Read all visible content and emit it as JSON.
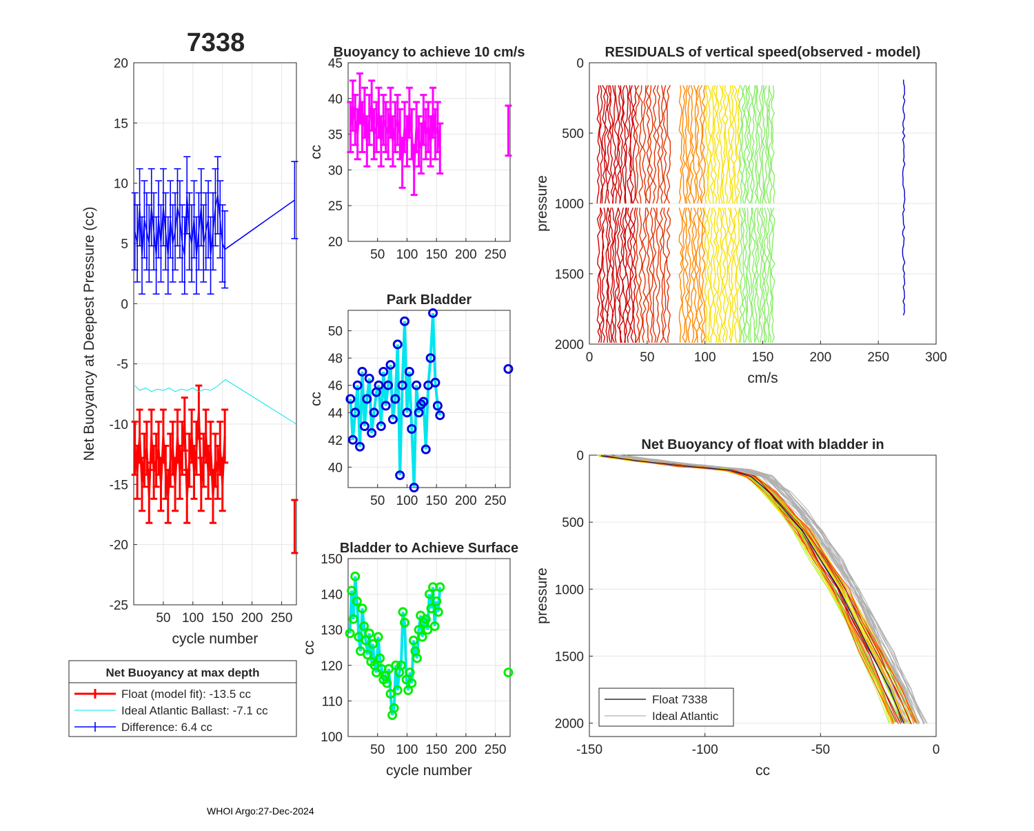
{
  "figure_title": "7338",
  "footer": "WHOI Argo:27-Dec-2024",
  "colors": {
    "float": "#ff0000",
    "ideal": "#00e5ee",
    "difference": "#0000ff",
    "magenta": "#ff00ff",
    "park": "#0000dd",
    "surface": "#00ee00",
    "grey": "#b0b0b0"
  },
  "chart_data": [
    {
      "id": "net-buoyancy",
      "type": "line",
      "title": "",
      "xlabel": "cycle number",
      "ylabel": "Net Buoyancy at Deepest Pressure (cc)",
      "xlim": [
        0,
        275
      ],
      "ylim": [
        -25,
        20
      ],
      "xticks": [
        50,
        100,
        150,
        200,
        250
      ],
      "yticks": [
        -25,
        -20,
        -15,
        -10,
        -5,
        0,
        5,
        10,
        15,
        20
      ],
      "series": [
        {
          "name": "Float (model fit)",
          "x": [
            2,
            6,
            10,
            14,
            18,
            22,
            26,
            30,
            34,
            38,
            42,
            46,
            50,
            54,
            58,
            62,
            66,
            70,
            74,
            78,
            82,
            86,
            90,
            94,
            98,
            102,
            106,
            110,
            114,
            118,
            122,
            126,
            130,
            134,
            138,
            142,
            146,
            150,
            154,
            272
          ],
          "y": [
            -12,
            -14,
            -11,
            -15,
            -13,
            -12,
            -16,
            -11,
            -14,
            -13,
            -12,
            -15,
            -11,
            -14,
            -16,
            -13,
            -12,
            -15,
            -11,
            -14,
            -12,
            -10,
            -16,
            -13,
            -11,
            -14,
            -12,
            -9,
            -15,
            -13,
            -11,
            -14,
            -12,
            -16,
            -13,
            -14,
            -12,
            -15,
            -11,
            -18.5
          ],
          "err": 2.2
        },
        {
          "name": "Ideal Atlantic Ballast",
          "x": [
            2,
            10,
            20,
            30,
            40,
            50,
            60,
            70,
            80,
            90,
            100,
            110,
            120,
            130,
            140,
            150,
            155,
            275
          ],
          "y": [
            -6.8,
            -7.2,
            -7.0,
            -7.3,
            -7.1,
            -7.2,
            -7.0,
            -7.3,
            -7.1,
            -7.2,
            -7.0,
            -7.3,
            -7.1,
            -7.2,
            -6.9,
            -6.5,
            -6.3,
            -10
          ]
        },
        {
          "name": "Difference",
          "x": [
            2,
            6,
            10,
            14,
            18,
            22,
            26,
            30,
            34,
            38,
            42,
            46,
            50,
            54,
            58,
            62,
            66,
            70,
            74,
            78,
            82,
            86,
            90,
            94,
            98,
            102,
            106,
            110,
            114,
            118,
            122,
            126,
            130,
            134,
            138,
            142,
            146,
            150,
            154,
            272
          ],
          "y": [
            6,
            5,
            8,
            4,
            7,
            6,
            5,
            8,
            6,
            4,
            7,
            5,
            8,
            6,
            4,
            7,
            5,
            6,
            8,
            7,
            5,
            4,
            9,
            6,
            5,
            7,
            4,
            6,
            8,
            5,
            6,
            7,
            4,
            6,
            8,
            9,
            7,
            5,
            4.5,
            8.6
          ],
          "err": 3.2
        }
      ],
      "legend": {
        "title": "Net Buoyancy at max depth",
        "entries": [
          "Float (model fit): -13.5 cc",
          "Ideal Atlantic Ballast:  -7.1 cc",
          "Difference:   6.4 cc"
        ]
      }
    },
    {
      "id": "buoyancy-10cms",
      "type": "line",
      "title": "Buoyancy to achieve 10 cm/s",
      "xlabel": "",
      "ylabel": "cc",
      "xlim": [
        0,
        275
      ],
      "ylim": [
        20,
        45
      ],
      "xticks": [
        50,
        100,
        150,
        200,
        250
      ],
      "yticks": [
        20,
        25,
        30,
        35,
        40,
        45
      ],
      "x": [
        4,
        8,
        12,
        16,
        20,
        24,
        28,
        32,
        36,
        40,
        44,
        48,
        52,
        56,
        60,
        64,
        68,
        72,
        76,
        80,
        84,
        88,
        92,
        96,
        100,
        104,
        108,
        112,
        116,
        120,
        124,
        128,
        132,
        136,
        140,
        144,
        148,
        152,
        156,
        272
      ],
      "y": [
        36,
        39,
        37,
        35,
        40,
        36,
        38,
        34,
        37,
        39,
        35,
        36,
        38,
        34,
        37,
        36,
        35,
        38,
        34,
        36,
        37,
        35,
        31,
        36,
        34,
        38,
        35,
        30,
        36,
        34,
        33,
        37,
        35,
        36,
        34,
        38,
        35,
        36,
        33,
        35.5
      ],
      "err": 3.5
    },
    {
      "id": "park-bladder",
      "type": "scatter",
      "title": "Park Bladder",
      "xlabel": "",
      "ylabel": "cc",
      "xlim": [
        0,
        275
      ],
      "ylim": [
        38.5,
        51.5
      ],
      "xticks": [
        50,
        100,
        150,
        200,
        250
      ],
      "yticks": [
        40,
        42,
        44,
        46,
        48,
        50
      ],
      "x": [
        4,
        8,
        12,
        16,
        20,
        24,
        28,
        32,
        36,
        40,
        44,
        48,
        52,
        56,
        60,
        64,
        68,
        72,
        76,
        80,
        84,
        88,
        92,
        96,
        100,
        104,
        108,
        112,
        116,
        120,
        124,
        128,
        132,
        136,
        140,
        144,
        148,
        152,
        156,
        272
      ],
      "y": [
        45,
        42,
        44,
        46,
        41.5,
        47,
        43,
        45,
        46.5,
        42.5,
        44,
        45.5,
        46,
        43,
        47,
        44.5,
        46,
        47.5,
        43.5,
        45,
        49,
        39.4,
        46,
        50.7,
        44,
        47,
        42.8,
        38.5,
        46,
        44,
        44.6,
        44.8,
        41.3,
        46,
        48,
        51.3,
        46.2,
        44.5,
        43.8,
        47.2
      ]
    },
    {
      "id": "bladder-surface",
      "type": "scatter",
      "title": "Bladder to Achieve Surface",
      "xlabel": "cycle number",
      "ylabel": "cc",
      "xlim": [
        0,
        275
      ],
      "ylim": [
        100,
        150
      ],
      "xticks": [
        50,
        100,
        150,
        200,
        250
      ],
      "yticks": [
        100,
        110,
        120,
        130,
        140,
        150
      ],
      "x": [
        3,
        6,
        9,
        12,
        15,
        18,
        21,
        24,
        27,
        30,
        33,
        36,
        39,
        42,
        45,
        48,
        51,
        54,
        57,
        60,
        63,
        66,
        69,
        72,
        75,
        78,
        81,
        84,
        87,
        90,
        93,
        96,
        99,
        102,
        105,
        108,
        111,
        114,
        117,
        120,
        123,
        126,
        129,
        132,
        135,
        138,
        141,
        144,
        147,
        150,
        153,
        156,
        272
      ],
      "y": [
        129,
        141,
        133,
        145,
        138,
        128,
        124,
        136,
        131,
        127,
        123,
        129,
        121,
        126,
        120,
        118,
        128,
        122,
        119,
        116,
        117,
        115,
        119,
        112,
        106,
        108,
        120,
        113,
        118,
        120,
        135,
        132,
        116,
        113,
        118,
        115,
        127,
        124,
        122,
        130,
        134,
        128,
        132,
        133,
        130,
        140,
        136,
        142,
        131,
        138,
        135,
        142,
        118
      ]
    },
    {
      "id": "residuals",
      "type": "line",
      "title": "RESIDUALS of vertical speed(observed - model)",
      "xlabel": "cm/s",
      "ylabel": "pressure",
      "xlim": [
        0,
        300
      ],
      "ylim": [
        2000,
        0
      ],
      "xticks": [
        0,
        50,
        100,
        150,
        200,
        250,
        300
      ],
      "yticks": [
        0,
        500,
        1000,
        1500,
        2000
      ],
      "profile_groups": [
        {
          "x_from": 7,
          "x_to": 40,
          "color": "#cc0000",
          "count": 15
        },
        {
          "x_from": 40,
          "x_to": 70,
          "color": "#e03000",
          "count": 10
        },
        {
          "x_from": 78,
          "x_to": 100,
          "color": "#ff8800",
          "count": 9
        },
        {
          "x_from": 100,
          "x_to": 130,
          "color": "#f8e000",
          "count": 12
        },
        {
          "x_from": 130,
          "x_to": 160,
          "color": "#88ee66",
          "count": 14
        }
      ],
      "single_profile": {
        "x": 272,
        "color": "#0000cc"
      }
    },
    {
      "id": "bladder-in",
      "type": "line",
      "title": "Net Buoyancy of float with bladder in",
      "xlabel": "cc",
      "ylabel": "pressure",
      "xlim": [
        -150,
        0
      ],
      "ylim": [
        2100,
        0
      ],
      "xticks": [
        -150,
        -100,
        -50,
        0
      ],
      "yticks": [
        0,
        500,
        1000,
        1500,
        2000
      ],
      "float_curve": {
        "x": [
          -145,
          -130,
          -110,
          -90,
          -80,
          -72,
          -65,
          -58,
          -50,
          -42,
          -35,
          -28,
          -20,
          -14
        ],
        "y": [
          5,
          40,
          80,
          110,
          160,
          280,
          420,
          560,
          780,
          1000,
          1240,
          1480,
          1750,
          2000
        ]
      },
      "ideal_offset": 4,
      "legend": [
        "Float 7338",
        "Ideal Atlantic"
      ]
    }
  ]
}
